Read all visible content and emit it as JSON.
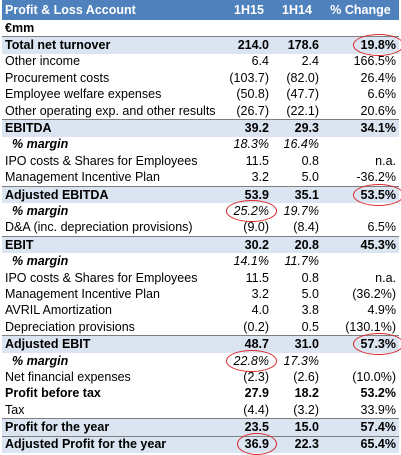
{
  "header": {
    "title": "Profit & Loss Account",
    "columns": [
      "1H15",
      "1H14",
      "% Change"
    ]
  },
  "table": {
    "rows": [
      [
        "€mm"
      ],
      [
        "Total net turnover",
        "214.0",
        "178.6",
        "19.8%"
      ],
      [
        "Other income",
        "6.4",
        "2.4",
        "166.5%"
      ],
      [
        "Procurement costs",
        "(103.7)",
        "(82.0)",
        "26.4%"
      ],
      [
        "Employee welfare expenses",
        "(50.8)",
        "(47.7)",
        "6.6%"
      ],
      [
        "Other operating exp. and other results",
        "(26.7)",
        "(22.1)",
        "20.6%"
      ],
      [
        "EBITDA",
        "39.2",
        "29.3",
        "34.1%"
      ],
      [
        "% margin",
        "18.3%",
        "16.4%"
      ],
      [
        "IPO costs & Shares for Employees",
        "11.5",
        "0.8",
        "n.a."
      ],
      [
        "Management Incentive Plan",
        "3.2",
        "5.0",
        "-36.2%"
      ],
      [
        "Adjusted EBITDA",
        "53.9",
        "35.1",
        "53.5%"
      ],
      [
        "% margin",
        "25.2%",
        "19.7%"
      ],
      [
        "D&A (inc. depreciation provisions)",
        "(9.0)",
        "(8.4)",
        "6.5%"
      ],
      [
        "EBIT",
        "30.2",
        "20.8",
        "45.3%"
      ],
      [
        "% margin",
        "14.1%",
        "11.7%"
      ],
      [
        "IPO costs & Shares for Employees",
        "11.5",
        "0.8",
        "n.a."
      ],
      [
        "Management  Incentive Plan",
        "3.2",
        "5.0",
        "(36.2%)"
      ],
      [
        "AVRIL Amortization",
        "4.0",
        "3.8",
        "4.9%"
      ],
      [
        "Depreciation provisions",
        "(0.2)",
        "0.5",
        "(130.1%)"
      ],
      [
        "Adjusted EBIT",
        "48.7",
        "31.0",
        "57.3%"
      ],
      [
        "% margin",
        "22.8%",
        "17.3%"
      ],
      [
        "Net financial expenses",
        "(2.3)",
        "(2.6)",
        "(10.0%)"
      ],
      [
        "Profit before tax",
        "27.9",
        "18.2",
        "53.2%"
      ],
      [
        "Tax",
        "(4.4)",
        "(3.2)",
        "33.9%"
      ],
      [
        "Profit for the year",
        "23.5",
        "15.0",
        "57.4%"
      ],
      [
        "Adjusted Profit for the year",
        "36.9",
        "22.3",
        "65.4%"
      ]
    ]
  }
}
